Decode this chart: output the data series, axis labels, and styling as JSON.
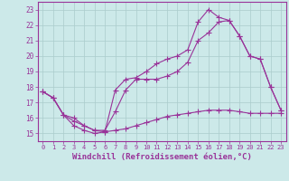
{
  "background_color": "#cce9e9",
  "grid_color": "#aacccc",
  "line_color": "#993399",
  "marker": "+",
  "xlabel": "Windchill (Refroidissement éolien,°C)",
  "xlabel_fontsize": 6.5,
  "xlim": [
    -0.5,
    23.5
  ],
  "ylim": [
    14.5,
    23.5
  ],
  "yticks": [
    15,
    16,
    17,
    18,
    19,
    20,
    21,
    22,
    23
  ],
  "xticks": [
    0,
    1,
    2,
    3,
    4,
    5,
    6,
    7,
    8,
    9,
    10,
    11,
    12,
    13,
    14,
    15,
    16,
    17,
    18,
    19,
    20,
    21,
    22,
    23
  ],
  "line1_x": [
    0,
    1,
    2,
    3,
    4,
    5,
    6,
    7,
    8,
    9,
    10,
    11,
    12,
    13,
    14,
    15,
    16,
    17,
    18,
    19,
    20,
    21,
    22,
    23
  ],
  "line1_y": [
    17.7,
    17.3,
    16.2,
    15.5,
    15.2,
    15.0,
    15.1,
    15.2,
    15.3,
    15.5,
    15.7,
    15.9,
    16.1,
    16.2,
    16.3,
    16.4,
    16.5,
    16.5,
    16.5,
    16.4,
    16.3,
    16.3,
    16.3,
    16.3
  ],
  "line2_x": [
    0,
    1,
    2,
    3,
    4,
    5,
    6,
    7,
    8,
    9,
    10,
    11,
    12,
    13,
    14,
    15,
    16,
    17,
    18,
    19,
    20,
    21,
    22,
    23
  ],
  "line2_y": [
    17.7,
    17.3,
    16.2,
    15.8,
    15.5,
    15.2,
    15.2,
    16.4,
    17.8,
    18.5,
    18.5,
    18.5,
    18.7,
    19.0,
    19.6,
    21.0,
    21.5,
    22.2,
    22.3,
    21.3,
    20.0,
    19.8,
    18.0,
    16.5
  ],
  "line3_x": [
    0,
    1,
    2,
    3,
    4,
    5,
    6,
    7,
    8,
    9,
    10,
    11,
    12,
    13,
    14,
    15,
    16,
    17,
    18,
    19,
    20,
    21,
    22,
    23
  ],
  "line3_y": [
    17.7,
    17.3,
    16.2,
    16.0,
    15.5,
    15.2,
    15.1,
    17.8,
    18.5,
    18.6,
    19.0,
    19.5,
    19.8,
    20.0,
    20.4,
    22.2,
    23.0,
    22.5,
    22.3,
    21.3,
    20.0,
    19.8,
    18.0,
    16.5
  ]
}
